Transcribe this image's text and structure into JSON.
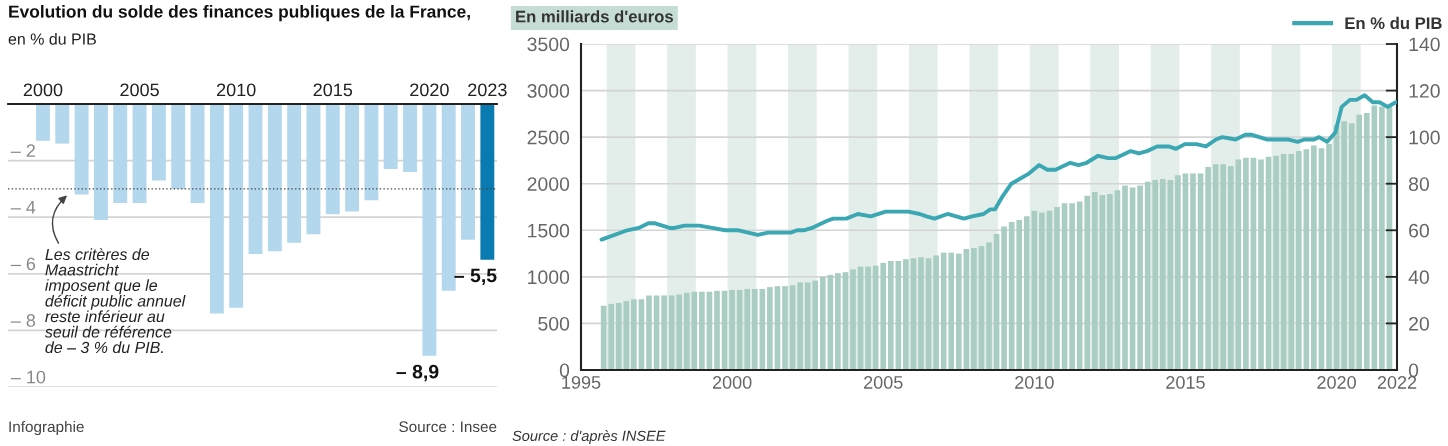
{
  "chart_data": [
    {
      "type": "bar",
      "title": "Evolution du solde des finances publiques de la France,",
      "subtitle": "en % du PIB",
      "categories": [
        "2000",
        null,
        null,
        null,
        null,
        "2005",
        null,
        null,
        null,
        null,
        "2010",
        null,
        null,
        null,
        null,
        "2015",
        null,
        null,
        null,
        null,
        "2020",
        null,
        null,
        "2023"
      ],
      "values": [
        -1.3,
        -1.4,
        -3.2,
        -4.1,
        -3.5,
        -3.5,
        -2.7,
        -3.0,
        -3.5,
        -7.4,
        -7.2,
        -5.3,
        -5.2,
        -4.9,
        -4.6,
        -3.9,
        -3.8,
        -3.4,
        -2.3,
        -2.4,
        -8.9,
        -6.6,
        -4.8,
        -5.5
      ],
      "colors": [
        "#b3d7ec",
        "#b3d7ec",
        "#b3d7ec",
        "#b3d7ec",
        "#b3d7ec",
        "#b3d7ec",
        "#b3d7ec",
        "#b3d7ec",
        "#b3d7ec",
        "#b3d7ec",
        "#b3d7ec",
        "#b3d7ec",
        "#b3d7ec",
        "#b3d7ec",
        "#b3d7ec",
        "#b3d7ec",
        "#b3d7ec",
        "#b3d7ec",
        "#b3d7ec",
        "#b3d7ec",
        "#b3d7ec",
        "#b3d7ec",
        "#b3d7ec",
        "#0a7bb0"
      ],
      "value_labels": [
        null,
        null,
        null,
        null,
        null,
        null,
        null,
        null,
        null,
        null,
        null,
        null,
        null,
        null,
        null,
        null,
        null,
        null,
        null,
        null,
        "– 8,9",
        null,
        null,
        "– 5,5"
      ],
      "ylim": [
        -10,
        0
      ],
      "yticks": [
        {
          "value": -2,
          "label": "– 2"
        },
        {
          "value": -4,
          "label": "– 4"
        },
        {
          "value": -6,
          "label": "– 6"
        },
        {
          "value": -8,
          "label": "– 8"
        },
        {
          "value": -10,
          "label": "– 10"
        }
      ],
      "grid": "y",
      "ref_lines": [
        {
          "axis": "y",
          "value": -3,
          "label": "Les critères de\nMaastricht\nimposent que le\ndéficit public annuel\nreste inférieur au\nseuil de référence\nde – 3 % du PIB.",
          "color": "#444444",
          "line_style": "dotted"
        }
      ],
      "annotations": [
        "Infographie",
        "Source : Insee"
      ]
    },
    {
      "type": "bar",
      "ylabel": "En milliards d'euros",
      "x": [
        1995.75,
        1996,
        1996.25,
        1996.5,
        1996.75,
        1997,
        1997.25,
        1997.5,
        1997.75,
        1998,
        1998.25,
        1998.5,
        1998.75,
        1999,
        1999.25,
        1999.5,
        1999.75,
        2000,
        2000.25,
        2000.5,
        2000.75,
        2001,
        2001.25,
        2001.5,
        2001.75,
        2002,
        2002.25,
        2002.5,
        2002.75,
        2003,
        2003.25,
        2003.5,
        2003.75,
        2004,
        2004.25,
        2004.5,
        2004.75,
        2005,
        2005.25,
        2005.5,
        2005.75,
        2006,
        2006.25,
        2006.5,
        2006.75,
        2007,
        2007.25,
        2007.5,
        2007.75,
        2008,
        2008.25,
        2008.5,
        2008.75,
        2009,
        2009.25,
        2009.5,
        2009.75,
        2010,
        2010.25,
        2010.5,
        2010.75,
        2011,
        2011.25,
        2011.5,
        2011.75,
        2012,
        2012.25,
        2012.5,
        2012.75,
        2013,
        2013.25,
        2013.5,
        2013.75,
        2014,
        2014.25,
        2014.5,
        2014.75,
        2015,
        2015.25,
        2015.5,
        2015.75,
        2016,
        2016.25,
        2016.5,
        2016.75,
        2017,
        2017.25,
        2017.5,
        2017.75,
        2018,
        2018.25,
        2018.5,
        2018.75,
        2019,
        2019.25,
        2019.5,
        2019.75,
        2020,
        2020.25,
        2020.5,
        2020.75,
        2021,
        2021.25,
        2021.5,
        2021.75
      ],
      "series": [
        {
          "type": "bar",
          "color": "#a9cdc2",
          "values": [
            690,
            710,
            720,
            740,
            760,
            760,
            800,
            800,
            800,
            800,
            810,
            830,
            840,
            840,
            840,
            850,
            850,
            860,
            860,
            870,
            870,
            870,
            890,
            900,
            900,
            910,
            940,
            940,
            960,
            1000,
            1020,
            1040,
            1050,
            1080,
            1110,
            1110,
            1120,
            1150,
            1170,
            1170,
            1190,
            1200,
            1210,
            1200,
            1230,
            1260,
            1260,
            1250,
            1300,
            1310,
            1330,
            1370,
            1460,
            1540,
            1590,
            1610,
            1650,
            1710,
            1690,
            1710,
            1750,
            1790,
            1790,
            1810,
            1870,
            1910,
            1880,
            1890,
            1930,
            1980,
            1960,
            1980,
            2020,
            2040,
            2050,
            2040,
            2090,
            2110,
            2110,
            2110,
            2180,
            2210,
            2210,
            2190,
            2260,
            2280,
            2280,
            2260,
            2290,
            2300,
            2320,
            2320,
            2350,
            2370,
            2410,
            2380,
            2430,
            2630,
            2670,
            2650,
            2740,
            2760,
            2840,
            2830,
            2840
          ]
        },
        {
          "type": "line",
          "name": "En % du PIB",
          "color": "#3ba7b3",
          "axis": "y2",
          "x": [
            1995.68,
            1996.53,
            1996.91,
            1997.23,
            1997.45,
            1997.93,
            1998.1,
            1998.42,
            1998.91,
            1999.34,
            1999.77,
            2000.21,
            2000.85,
            2001.18,
            2001.72,
            2001.94,
            2002.15,
            2002.37,
            2002.64,
            2003.13,
            2003.34,
            2003.78,
            2004.16,
            2004.59,
            2005.08,
            2005.4,
            2005.83,
            2006.21,
            2006.43,
            2006.7,
            2007.13,
            2007.67,
            2007.94,
            2008.32,
            2008.54,
            2008.7,
            2008.92,
            2009.24,
            2009.51,
            2009.78,
            2010.16,
            2010.43,
            2010.7,
            2011.19,
            2011.46,
            2011.73,
            2012.11,
            2012.44,
            2012.7,
            2013.19,
            2013.46,
            2013.73,
            2014.06,
            2014.44,
            2014.69,
            2014.98,
            2015.36,
            2015.68,
            2016.01,
            2016.22,
            2016.66,
            2016.98,
            2017.2,
            2017.69,
            2017.95,
            2018.39,
            2018.71,
            2018.93,
            2019.25,
            2019.42,
            2019.69,
            2019.96,
            2020.17,
            2020.44,
            2020.66,
            2020.93,
            2021.2,
            2021.42,
            2021.69,
            2021.96
          ],
          "values": [
            56,
            60,
            61,
            63,
            63,
            61,
            61,
            62,
            62,
            61,
            60,
            60,
            58,
            59,
            59,
            59,
            60,
            60,
            61,
            64,
            65,
            65,
            67,
            66,
            68,
            68,
            68,
            67,
            66,
            65,
            67,
            65,
            66,
            67,
            69,
            69,
            74,
            80,
            82,
            84,
            88,
            86,
            86,
            89,
            88,
            89,
            92,
            91,
            91,
            94,
            93,
            94,
            96,
            96,
            95,
            97,
            97,
            96,
            99,
            100,
            99,
            101,
            101,
            99,
            99,
            99,
            98,
            99,
            99,
            100,
            98,
            102,
            113,
            116,
            116,
            118,
            115,
            115,
            113,
            115
          ]
        }
      ],
      "xlim": [
        1995,
        2022
      ],
      "xticks": [
        1995,
        2000,
        2005,
        2010,
        2015,
        2020,
        2022
      ],
      "ylim": [
        0,
        3500
      ],
      "yticks": [
        0,
        500,
        1000,
        1500,
        2000,
        2500,
        3000,
        3500
      ],
      "y2lim": [
        0,
        140
      ],
      "y2ticks": [
        0,
        20,
        40,
        60,
        80,
        100,
        120,
        140
      ],
      "grid": "y",
      "legend": "top right",
      "bands": [
        {
          "axis": "x",
          "from": 1995.85,
          "to": 1996.8,
          "color": "#e3eeea"
        },
        {
          "axis": "x",
          "from": 1997.85,
          "to": 1998.8,
          "color": "#e3eeea"
        },
        {
          "axis": "x",
          "from": 1999.85,
          "to": 2000.8,
          "color": "#e3eeea"
        },
        {
          "axis": "x",
          "from": 2001.85,
          "to": 2002.8,
          "color": "#e3eeea"
        },
        {
          "axis": "x",
          "from": 2003.85,
          "to": 2004.8,
          "color": "#e3eeea"
        },
        {
          "axis": "x",
          "from": 2005.85,
          "to": 2006.8,
          "color": "#e3eeea"
        },
        {
          "axis": "x",
          "from": 2007.85,
          "to": 2008.8,
          "color": "#e3eeea"
        },
        {
          "axis": "x",
          "from": 2009.85,
          "to": 2010.8,
          "color": "#e3eeea"
        },
        {
          "axis": "x",
          "from": 2011.85,
          "to": 2012.8,
          "color": "#e3eeea"
        },
        {
          "axis": "x",
          "from": 2013.85,
          "to": 2014.8,
          "color": "#e3eeea"
        },
        {
          "axis": "x",
          "from": 2015.85,
          "to": 2016.8,
          "color": "#e3eeea"
        },
        {
          "axis": "x",
          "from": 2017.85,
          "to": 2018.8,
          "color": "#e3eeea"
        },
        {
          "axis": "x",
          "from": 2019.85,
          "to": 2020.8,
          "color": "#e3eeea"
        }
      ],
      "annotations": [
        "Source : d'après INSEE"
      ]
    }
  ]
}
